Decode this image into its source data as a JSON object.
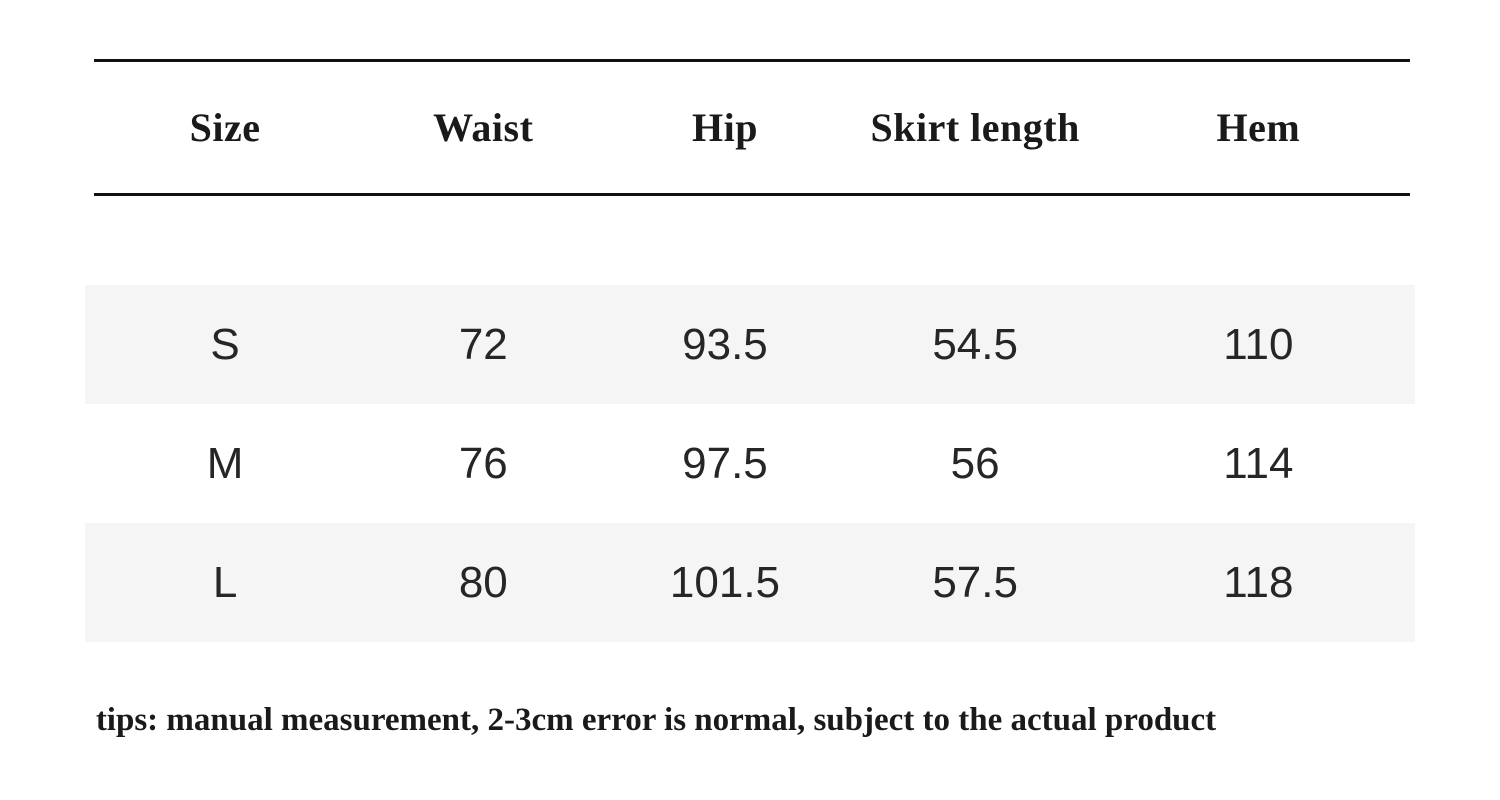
{
  "chart_data": {
    "type": "table",
    "columns": [
      "Size",
      "Waist",
      "Hip",
      "Skirt length",
      "Hem"
    ],
    "rows": [
      [
        "S",
        "72",
        "93.5",
        "54.5",
        "110"
      ],
      [
        "M",
        "76",
        "97.5",
        "56",
        "114"
      ],
      [
        "L",
        "80",
        "101.5",
        "57.5",
        "118"
      ]
    ],
    "layout": {
      "striped_rows": "odd",
      "header_separator": "top-and-bottom-rules"
    }
  },
  "footer": {
    "tips": "tips: manual measurement, 2-3cm error is normal, subject to the actual product"
  },
  "colors": {
    "row_stripe": "#f5f5f6",
    "rule": "#111111",
    "header_text": "#1a1a1a",
    "cell_text": "#262626",
    "tips_text": "#1a1a1a",
    "background": "#ffffff"
  }
}
